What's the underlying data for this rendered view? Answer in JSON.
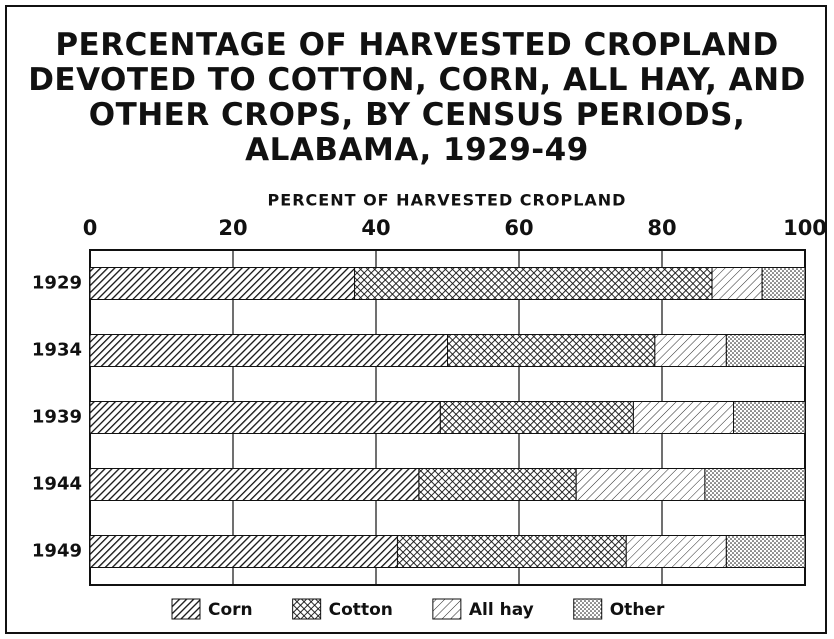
{
  "chart_data": {
    "type": "stacked-bar-horizontal",
    "title": "PERCENTAGE OF HARVESTED CROPLAND DEVOTED TO COTTON, CORN, ALL HAY, AND OTHER CROPS, BY CENSUS PERIODS, ALABAMA, 1929-49",
    "xlabel": "PERCENT OF HARVESTED CROPLAND",
    "categories": [
      "1929",
      "1934",
      "1939",
      "1944",
      "1949"
    ],
    "series": [
      {
        "name": "Corn",
        "color": "#111111",
        "pattern": "dense-hatch",
        "values": [
          37,
          50,
          49,
          46,
          43
        ]
      },
      {
        "name": "Cotton",
        "color": "#111111",
        "pattern": "crosshatch",
        "values": [
          50,
          29,
          27,
          22,
          32
        ]
      },
      {
        "name": "All hay",
        "color": "#111111",
        "pattern": "sparse-hatch",
        "values": [
          7,
          10,
          14,
          18,
          14
        ]
      },
      {
        "name": "Other",
        "color": "#111111",
        "pattern": "dots",
        "values": [
          6,
          11,
          10,
          14,
          11
        ]
      }
    ],
    "xlim": [
      0,
      100
    ],
    "xticks": [
      0,
      20,
      40,
      60,
      80,
      100
    ],
    "grid": true
  }
}
